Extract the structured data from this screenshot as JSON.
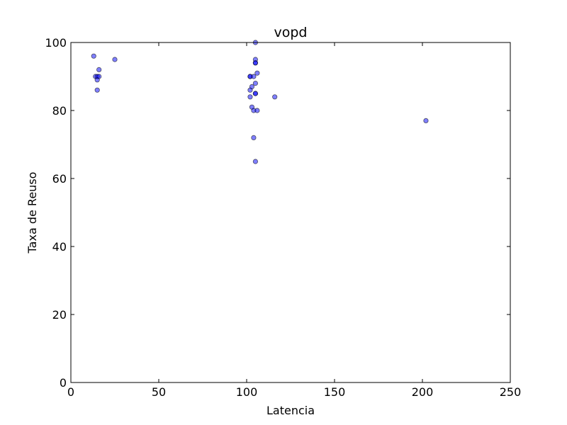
{
  "chart_data": {
    "type": "scatter",
    "title": "vopd",
    "xlabel": "Latencia",
    "ylabel": "Taxa de Reuso",
    "xlim": [
      0,
      250
    ],
    "ylim": [
      0,
      100
    ],
    "xticks": [
      0,
      50,
      100,
      150,
      200,
      250
    ],
    "yticks": [
      0,
      20,
      40,
      60,
      80,
      100
    ],
    "grid": false,
    "marker_color": "#0000ff",
    "marker_alpha": 0.5,
    "series": [
      {
        "points": [
          {
            "x": 13,
            "y": 96
          },
          {
            "x": 14,
            "y": 90
          },
          {
            "x": 15,
            "y": 90
          },
          {
            "x": 16,
            "y": 90
          },
          {
            "x": 15,
            "y": 89
          },
          {
            "x": 16,
            "y": 92
          },
          {
            "x": 15,
            "y": 86
          },
          {
            "x": 25,
            "y": 95
          },
          {
            "x": 105,
            "y": 100
          },
          {
            "x": 105,
            "y": 95
          },
          {
            "x": 105,
            "y": 94
          },
          {
            "x": 105,
            "y": 94
          },
          {
            "x": 106,
            "y": 91
          },
          {
            "x": 102,
            "y": 90
          },
          {
            "x": 102,
            "y": 90
          },
          {
            "x": 104,
            "y": 90
          },
          {
            "x": 105,
            "y": 88
          },
          {
            "x": 103,
            "y": 87
          },
          {
            "x": 102,
            "y": 86
          },
          {
            "x": 105,
            "y": 85
          },
          {
            "x": 105,
            "y": 85
          },
          {
            "x": 102,
            "y": 84
          },
          {
            "x": 116,
            "y": 84
          },
          {
            "x": 103,
            "y": 81
          },
          {
            "x": 104,
            "y": 80
          },
          {
            "x": 106,
            "y": 80
          },
          {
            "x": 104,
            "y": 72
          },
          {
            "x": 105,
            "y": 65
          },
          {
            "x": 202,
            "y": 77
          }
        ]
      }
    ]
  }
}
